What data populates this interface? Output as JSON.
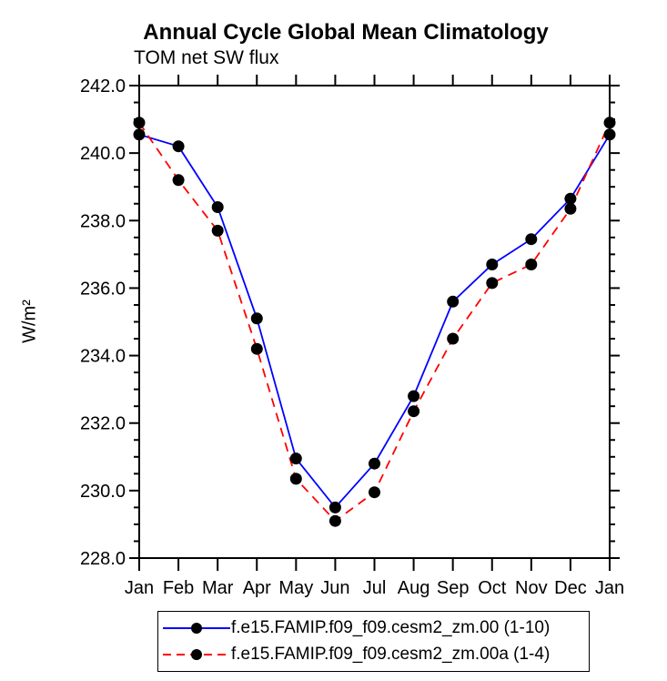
{
  "chart_data": {
    "type": "line",
    "title": "Annual Cycle Global Mean Climatology",
    "subtitle": "TOM net SW flux",
    "ylabel": "W/m²",
    "x_labels": [
      "Jan",
      "Feb",
      "Mar",
      "Apr",
      "May",
      "Jun",
      "Jul",
      "Aug",
      "Sep",
      "Oct",
      "Nov",
      "Dec",
      "Jan"
    ],
    "ylim": [
      228.0,
      242.0
    ],
    "ytick_major_interval": 2.0,
    "ytick_minor_interval": 0.5,
    "ytick_labels": [
      "228.0",
      "230.0",
      "232.0",
      "234.0",
      "236.0",
      "238.0",
      "240.0",
      "242.0"
    ],
    "grid": false,
    "legend_position": "bottom",
    "marker": "black-dot",
    "series": [
      {
        "name": "f.e15.FAMIP.f09_f09.cesm2_zm.00 (1-10)",
        "color": "#0000ff",
        "style": "solid",
        "values": [
          240.55,
          240.2,
          238.4,
          235.1,
          230.95,
          229.5,
          230.8,
          232.8,
          235.6,
          236.7,
          237.45,
          238.65,
          240.55
        ]
      },
      {
        "name": "f.e15.FAMIP.f09_f09.cesm2_zm.00a (1-4)",
        "color": "#ff0000",
        "style": "dashed",
        "values": [
          240.9,
          239.2,
          237.7,
          234.2,
          230.35,
          229.1,
          229.95,
          232.35,
          234.5,
          236.15,
          236.7,
          238.35,
          240.9
        ]
      }
    ]
  }
}
